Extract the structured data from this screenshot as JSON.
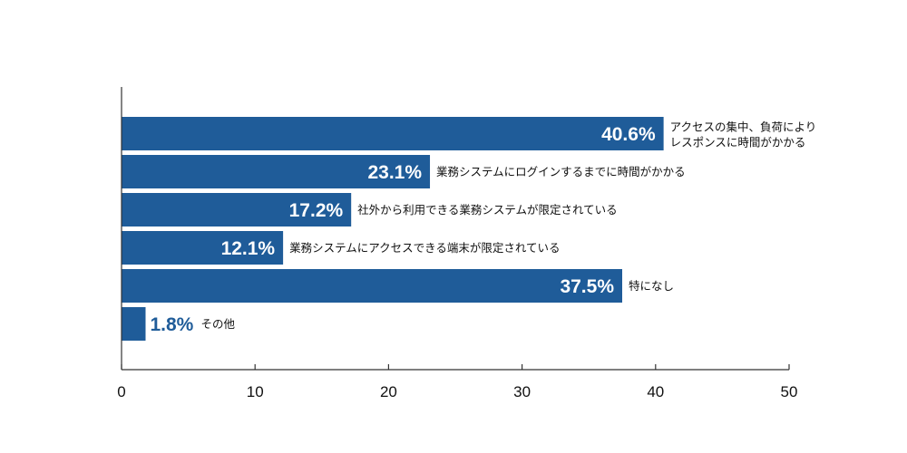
{
  "chart_data": {
    "type": "bar",
    "orientation": "horizontal",
    "categories": [
      [
        "アクセスの集中、負荷により",
        "レスポンスに時間がかかる"
      ],
      [
        "業務システムにログインするまでに時間がかかる"
      ],
      [
        "社外から利用できる業務システムが限定されている"
      ],
      [
        "業務システムにアクセスできる端末が限定されている"
      ],
      [
        "特になし"
      ],
      [
        "その他"
      ]
    ],
    "values": [
      40.6,
      23.1,
      17.2,
      12.1,
      37.5,
      1.8
    ],
    "value_labels": [
      "40.6%",
      "23.1%",
      "17.2%",
      "12.1%",
      "37.5%",
      "1.8%"
    ],
    "xlim": [
      0,
      50
    ],
    "xticks": [
      0,
      10,
      20,
      30,
      40,
      50
    ],
    "bar_color": "#1f5c99",
    "grid": false,
    "title": "",
    "xlabel": "",
    "ylabel": ""
  }
}
